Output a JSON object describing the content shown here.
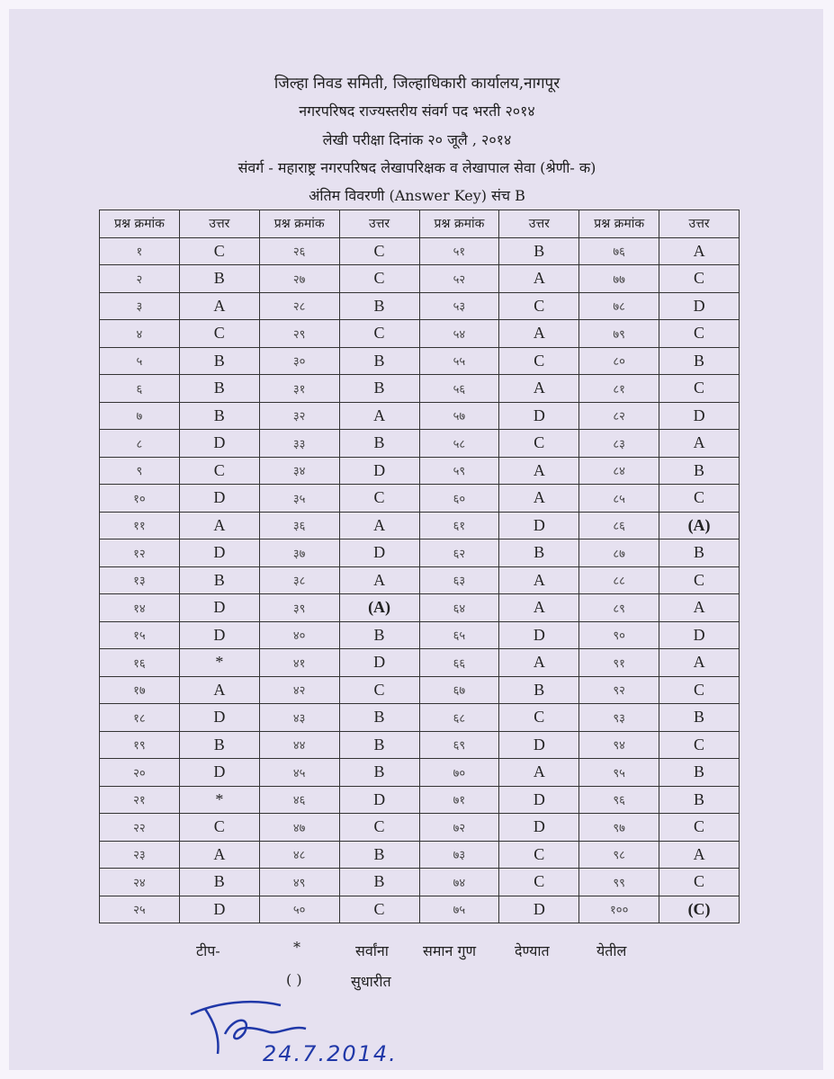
{
  "header": {
    "line1": "जिल्हा निवड समिती, जिल्हाधिकारी कार्यालय,नागपूर",
    "line2": "नगरपरिषद राज्यस्तरीय संवर्ग पद भरती  २०१४",
    "line3": "लेखी परीक्षा दिनांक २० जूलै , २०१४",
    "line4": "संवर्ग - महाराष्ट्र  नगरपरिषद लेखापरिक्षक व लेखापाल सेवा (श्रेणी- क)",
    "line5": "अंतिम विवरणी (Answer Key) संच B"
  },
  "table": {
    "headers": [
      "प्रश्न क्रमांक",
      "उत्तर",
      "प्रश्न क्रमांक",
      "उत्तर",
      "प्रश्न क्रमांक",
      "उत्तर",
      "प्रश्न क्रमांक",
      "उत्तर"
    ],
    "rows": [
      [
        "१",
        "C",
        "२६",
        "C",
        "५१",
        "B",
        "७६",
        "A"
      ],
      [
        "२",
        "B",
        "२७",
        "C",
        "५२",
        "A",
        "७७",
        "C"
      ],
      [
        "३",
        "A",
        "२८",
        "B",
        "५३",
        "C",
        "७८",
        "D"
      ],
      [
        "४",
        "C",
        "२९",
        "C",
        "५४",
        "A",
        "७९",
        "C"
      ],
      [
        "५",
        "B",
        "३०",
        "B",
        "५५",
        "C",
        "८०",
        "B"
      ],
      [
        "६",
        "B",
        "३१",
        "B",
        "५६",
        "A",
        "८१",
        "C"
      ],
      [
        "७",
        "B",
        "३२",
        "A",
        "५७",
        "D",
        "८२",
        "D"
      ],
      [
        "८",
        "D",
        "३३",
        "B",
        "५८",
        "C",
        "८३",
        "A"
      ],
      [
        "९",
        "C",
        "३४",
        "D",
        "५९",
        "A",
        "८४",
        "B"
      ],
      [
        "१०",
        "D",
        "३५",
        "C",
        "६०",
        "A",
        "८५",
        "C"
      ],
      [
        "११",
        "A",
        "३६",
        "A",
        "६१",
        "D",
        "८६",
        "(A)"
      ],
      [
        "१२",
        "D",
        "३७",
        "D",
        "६२",
        "B",
        "८७",
        "B"
      ],
      [
        "१३",
        "B",
        "३८",
        "A",
        "६३",
        "A",
        "८८",
        "C"
      ],
      [
        "१४",
        "D",
        "३९",
        "(A)",
        "६४",
        "A",
        "८९",
        "A"
      ],
      [
        "१५",
        "D",
        "४०",
        "B",
        "६५",
        "D",
        "९०",
        "D"
      ],
      [
        "१६",
        "*",
        "४१",
        "D",
        "६६",
        "A",
        "९१",
        "A"
      ],
      [
        "१७",
        "A",
        "४२",
        "C",
        "६७",
        "B",
        "९२",
        "C"
      ],
      [
        "१८",
        "D",
        "४३",
        "B",
        "६८",
        "C",
        "९३",
        "B"
      ],
      [
        "१९",
        "B",
        "४४",
        "B",
        "६९",
        "D",
        "९४",
        "C"
      ],
      [
        "२०",
        "D",
        "४५",
        "B",
        "७०",
        "A",
        "९५",
        "B"
      ],
      [
        "२१",
        "*",
        "४६",
        "D",
        "७१",
        "D",
        "९६",
        "B"
      ],
      [
        "२२",
        "C",
        "४७",
        "C",
        "७२",
        "D",
        "९७",
        "C"
      ],
      [
        "२३",
        "A",
        "४८",
        "B",
        "७३",
        "C",
        "९८",
        "A"
      ],
      [
        "२४",
        "B",
        "४९",
        "B",
        "७४",
        "C",
        "९९",
        "C"
      ],
      [
        "२५",
        "D",
        "५०",
        "C",
        "७५",
        "D",
        "१००",
        "(C)"
      ]
    ]
  },
  "notes": {
    "tip": "टीप-",
    "star": "*",
    "w1": "सर्वांना",
    "w2": "समान गुण",
    "w3": "देण्यात",
    "w4": "येतील",
    "paren": "( )",
    "revised": "सुधारीत"
  },
  "signature": {
    "date": "24.7.2014."
  }
}
